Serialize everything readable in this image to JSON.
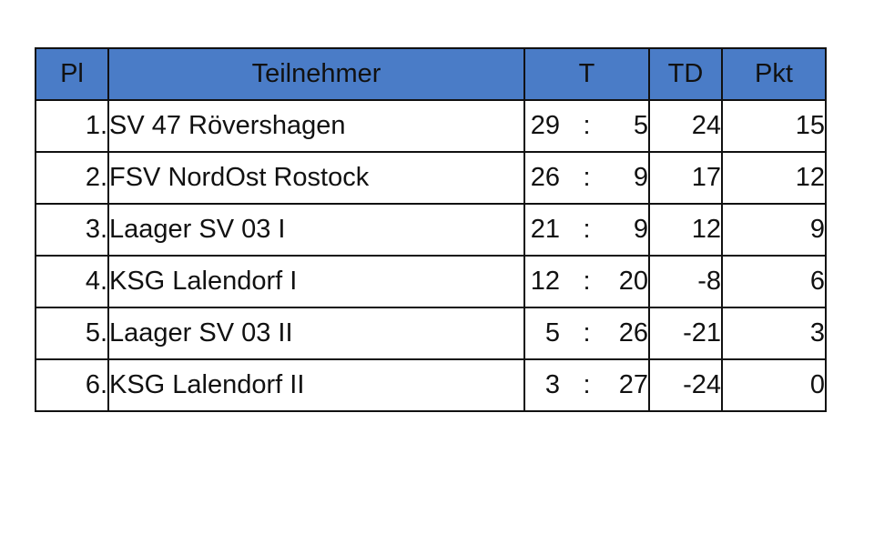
{
  "table": {
    "headers": {
      "pl": "Pl",
      "team": "Teilnehmer",
      "t": "T",
      "td": "TD",
      "pkt": "Pkt"
    },
    "separator": ":",
    "rows": [
      {
        "pl": "1.",
        "team": "SV 47 Rövershagen",
        "t_for": "29",
        "t_against": "5",
        "td": "24",
        "pkt": "15"
      },
      {
        "pl": "2.",
        "team": "FSV NordOst Rostock",
        "t_for": "26",
        "t_against": "9",
        "td": "17",
        "pkt": "12"
      },
      {
        "pl": "3.",
        "team": "Laager SV 03 I",
        "t_for": "21",
        "t_against": "9",
        "td": "12",
        "pkt": "9"
      },
      {
        "pl": "4.",
        "team": "KSG Lalendorf I",
        "t_for": "12",
        "t_against": "20",
        "td": "-8",
        "pkt": "6"
      },
      {
        "pl": "5.",
        "team": "Laager SV 03 II",
        "t_for": "5",
        "t_against": "26",
        "td": "-21",
        "pkt": "3"
      },
      {
        "pl": "6.",
        "team": "KSG Lalendorf II",
        "t_for": "3",
        "t_against": "27",
        "td": "-24",
        "pkt": "0"
      }
    ]
  },
  "colors": {
    "header_bg": "#4a7cc7",
    "border": "#111111"
  }
}
